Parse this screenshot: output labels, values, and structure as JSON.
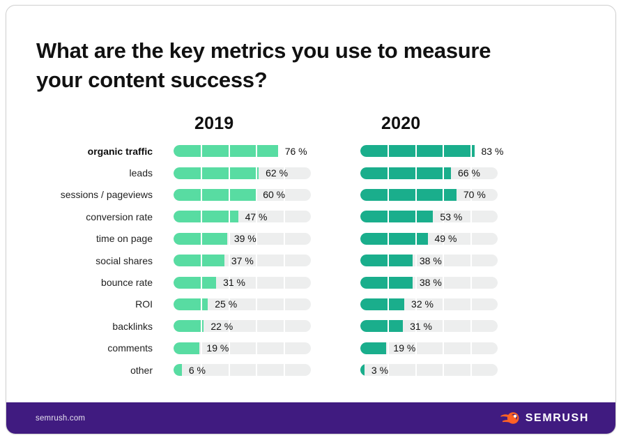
{
  "title_lines": {
    "line1": "What are the key metrics you use to measure",
    "line2": "your content success?"
  },
  "chart_data": {
    "type": "bar",
    "orientation": "horizontal",
    "title": "What are the key metrics you use to measure your content success?",
    "unit": "%",
    "xlim": [
      0,
      100
    ],
    "segment_dividers_every": 20,
    "value_label_format": "{v} %",
    "categories": [
      "organic traffic",
      "leads",
      "sessions / pageviews",
      "conversion rate",
      "time on page",
      "social shares",
      "bounce rate",
      "ROI",
      "backlinks",
      "comments",
      "other"
    ],
    "series": [
      {
        "name": "2019",
        "color": "#58DCA2",
        "values": [
          76,
          62,
          60,
          47,
          39,
          37,
          31,
          25,
          22,
          19,
          6
        ]
      },
      {
        "name": "2020",
        "color": "#1AAE8C",
        "values": [
          83,
          66,
          70,
          53,
          49,
          38,
          38,
          32,
          31,
          19,
          3
        ]
      }
    ],
    "highlight_category": "organic traffic"
  },
  "footer": {
    "url": "semrush.com",
    "brand": "SEMRUSH"
  },
  "colors": {
    "track": "#EDEEEE",
    "footer_bg": "#401B80",
    "logo_orange": "#FF6224",
    "logo_dark": "#3B1578",
    "title_text": "#111111"
  }
}
